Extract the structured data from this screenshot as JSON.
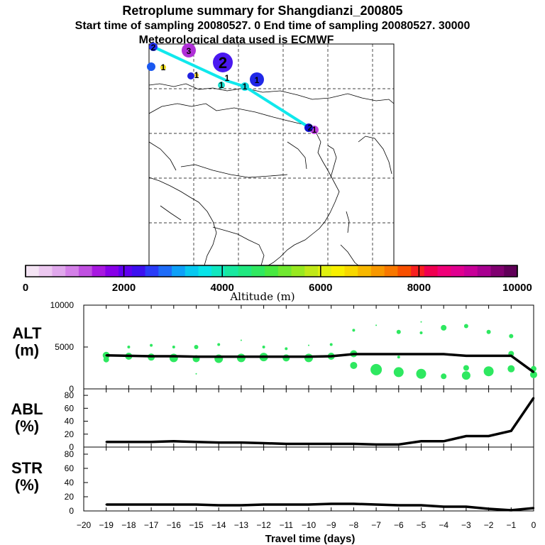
{
  "header": {
    "title": "Retroplume summary for Shangdianzi_200805",
    "sampling": "Start time of sampling 20080527.    0     End time of sampling 20080527. 30000",
    "met": "Meteorological data used is ECMWF"
  },
  "colorbar": {
    "ticks": [
      "0",
      "2000",
      "4000",
      "6000",
      "8000",
      "10000"
    ],
    "label": "Altitude (m)",
    "colors": [
      "#f4e4f4",
      "#ecc8f0",
      "#e0a8ec",
      "#d480e8",
      "#c050e0",
      "#a818e0",
      "#8800e8",
      "#6000f0",
      "#3c10f0",
      "#2a3cf8",
      "#1e6cf8",
      "#0ea0f8",
      "#08c8f0",
      "#08e4e8",
      "#10e8c0",
      "#18e8a0",
      "#20e880",
      "#30e860",
      "#48e840",
      "#70e830",
      "#98e820",
      "#c0e818",
      "#e0f010",
      "#f8f000",
      "#f8d800",
      "#f8b800",
      "#f89800",
      "#f87800",
      "#f85000",
      "#f82020",
      "#f00050",
      "#f00078",
      "#e00090",
      "#c80098",
      "#a80090",
      "#800070",
      "#600058"
    ]
  },
  "map": {
    "markers": [
      {
        "label": "2",
        "color": "#2030f0"
      },
      {
        "label": "3",
        "color": "#b030d8"
      },
      {
        "label": "1",
        "color": "#1a58f0"
      },
      {
        "label": "1",
        "color": "#f0e020"
      },
      {
        "label": "1",
        "color": "#2020e0"
      },
      {
        "label": "1",
        "color": "#f0d020"
      },
      {
        "label": "1",
        "color": "#1ae0d0"
      },
      {
        "label": "1",
        "color": "#10d8e0"
      },
      {
        "label": "1",
        "color": "#2028e8"
      },
      {
        "label": "1",
        "color": "#c040e0"
      },
      {
        "label": "1",
        "color": "#1010d0"
      },
      {
        "label": "2",
        "color": "#10d8e8"
      }
    ]
  },
  "chart_data": [
    {
      "type": "line",
      "title": "ALT (m)",
      "ylabel": "ALT\n(m)",
      "ylim": [
        0,
        10000
      ],
      "yticks": [
        "0",
        "5000",
        "10000"
      ],
      "x": [
        -19,
        -18,
        -17,
        -16,
        -15,
        -14,
        -13,
        -12,
        -11,
        -10,
        -9,
        -8,
        -7,
        -6,
        -5,
        -4,
        -3,
        -2,
        -1,
        0
      ],
      "values": [
        4000,
        3950,
        3900,
        3900,
        3850,
        3850,
        3850,
        3850,
        3850,
        3850,
        3900,
        4150,
        4150,
        4150,
        4150,
        4150,
        3950,
        3950,
        3950,
        2000
      ]
    },
    {
      "type": "line",
      "title": "ABL (%)",
      "ylabel": "ABL\n(%)",
      "ylim": [
        0,
        90
      ],
      "yticks": [
        "0",
        "20",
        "40",
        "60",
        "80"
      ],
      "x": [
        -19,
        -18,
        -17,
        -16,
        -15,
        -14,
        -13,
        -12,
        -11,
        -10,
        -9,
        -8,
        -7,
        -6,
        -5,
        -4,
        -3,
        -2,
        -1,
        0
      ],
      "values": [
        8,
        8,
        8,
        9,
        8,
        7,
        7,
        6,
        5,
        5,
        5,
        5,
        4,
        4,
        9,
        9,
        17,
        17,
        25,
        76
      ]
    },
    {
      "type": "line",
      "title": "STR (%)",
      "ylabel": "STR\n(%)",
      "ylim": [
        0,
        90
      ],
      "yticks": [
        "0",
        "20",
        "40",
        "60",
        "80"
      ],
      "x": [
        -19,
        -18,
        -17,
        -16,
        -15,
        -14,
        -13,
        -12,
        -11,
        -10,
        -9,
        -8,
        -7,
        -6,
        -5,
        -4,
        -3,
        -2,
        -1,
        0
      ],
      "values": [
        9,
        9,
        9,
        9,
        9,
        8,
        8,
        9,
        9,
        9,
        10,
        10,
        9,
        8,
        8,
        6,
        6,
        3,
        1,
        4
      ]
    }
  ],
  "xaxis": {
    "label": "Travel time (days)",
    "ticks": [
      "−20",
      "−19",
      "−18",
      "−17",
      "−16",
      "−15",
      "−14",
      "−13",
      "−12",
      "−11",
      "−10",
      "−9",
      "−8",
      "−7",
      "−6",
      "−5",
      "−4",
      "−3",
      "−2",
      "−1",
      "0"
    ]
  },
  "panels": {
    "alt": {
      "name1": "ALT",
      "name2": "(m)"
    },
    "abl": {
      "name1": "ABL",
      "name2": "(%)"
    },
    "str": {
      "name1": "STR",
      "name2": "(%)"
    }
  }
}
